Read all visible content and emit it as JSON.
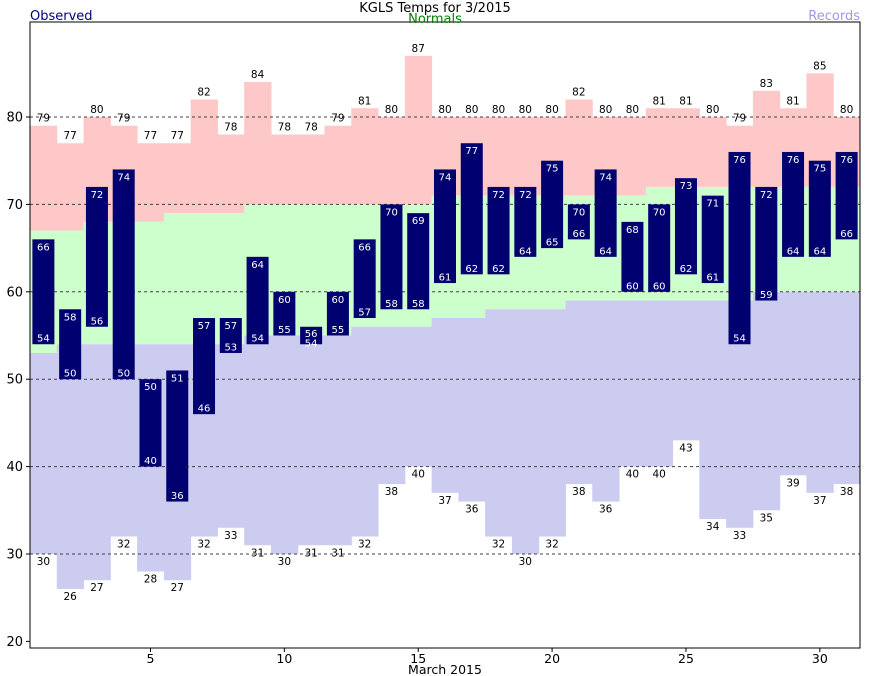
{
  "title": "KGLS Temps for 3/2015",
  "legend": {
    "observed": {
      "label": "Observed",
      "color": "#000080"
    },
    "normals": {
      "label": "Normals",
      "color": "#008000"
    },
    "records": {
      "label": "Records",
      "color": "#a695ea"
    }
  },
  "colors": {
    "observed_bar": "#000070",
    "record_band": "#ffc8c8",
    "normal_band": "#ccffcc",
    "record_low_band": "#ccccf0",
    "gridline": "#404040",
    "axis": "#000000",
    "bar_label": "#ffffff",
    "record_label": "#000000",
    "background": "#ffffff"
  },
  "y_axis": {
    "ticks": [
      20,
      30,
      40,
      50,
      60,
      70,
      80
    ],
    "gridlines": [
      30,
      40,
      50,
      60,
      70,
      80
    ]
  },
  "x_axis": {
    "ticks": [
      5,
      10,
      15,
      20,
      25,
      30
    ],
    "label": "March 2015"
  },
  "chart_data": {
    "type": "bar",
    "title": "KGLS Temps for 3/2015",
    "xlabel": "March 2015",
    "ylabel": "",
    "ylim": [
      19,
      91
    ],
    "x_days": [
      1,
      2,
      3,
      4,
      5,
      6,
      7,
      8,
      9,
      10,
      11,
      12,
      13,
      14,
      15,
      16,
      17,
      18,
      19,
      20,
      21,
      22,
      23,
      24,
      25,
      26,
      27,
      28,
      29,
      30,
      31
    ],
    "series": [
      {
        "name": "observed_high",
        "values": [
          66,
          58,
          72,
          74,
          50,
          51,
          57,
          57,
          64,
          60,
          56,
          60,
          66,
          70,
          69,
          74,
          77,
          72,
          72,
          75,
          70,
          74,
          68,
          70,
          73,
          71,
          76,
          72,
          76,
          75,
          76
        ]
      },
      {
        "name": "observed_low",
        "values": [
          54,
          50,
          56,
          50,
          40,
          36,
          46,
          53,
          54,
          55,
          54,
          55,
          57,
          58,
          58,
          61,
          62,
          62,
          64,
          65,
          66,
          64,
          60,
          60,
          62,
          61,
          54,
          59,
          64,
          64,
          66
        ]
      },
      {
        "name": "record_high",
        "values": [
          79,
          77,
          80,
          79,
          77,
          77,
          82,
          78,
          84,
          78,
          78,
          79,
          81,
          80,
          87,
          80,
          80,
          80,
          80,
          80,
          82,
          80,
          80,
          81,
          81,
          80,
          79,
          83,
          81,
          85,
          80
        ]
      },
      {
        "name": "record_low",
        "values": [
          30,
          26,
          27,
          32,
          28,
          27,
          32,
          33,
          31,
          30,
          31,
          31,
          32,
          38,
          40,
          37,
          36,
          32,
          30,
          32,
          38,
          36,
          40,
          40,
          43,
          34,
          33,
          35,
          39,
          37,
          38
        ]
      },
      {
        "name": "normal_high",
        "values": [
          67,
          67,
          68,
          68,
          68,
          69,
          69,
          69,
          70,
          70,
          70,
          70,
          70,
          70,
          70,
          71,
          71,
          71,
          71,
          71,
          71,
          71,
          71,
          72,
          72,
          72,
          72,
          72,
          72,
          72,
          72
        ]
      },
      {
        "name": "normal_low",
        "values": [
          53,
          54,
          54,
          54,
          54,
          54,
          54,
          54,
          55,
          55,
          55,
          55,
          56,
          56,
          56,
          57,
          57,
          58,
          58,
          58,
          59,
          59,
          59,
          59,
          59,
          59,
          59,
          60,
          60,
          60,
          60
        ]
      }
    ],
    "legend_position": "top",
    "grid": "dashed-horizontal"
  }
}
